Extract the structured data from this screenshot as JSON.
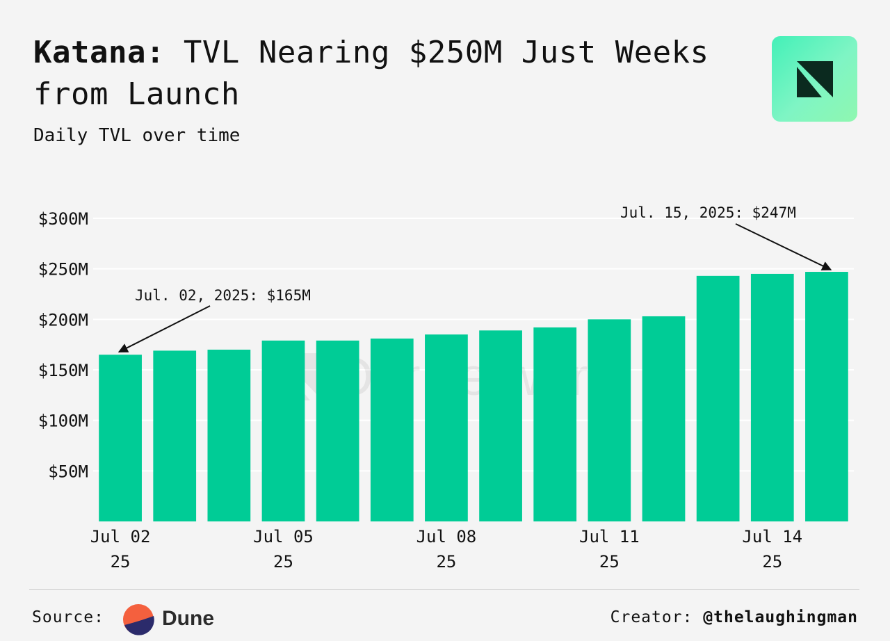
{
  "header": {
    "title_brand": "Katana:",
    "title_rest": " TVL Nearing $250M Just Weeks from Launch",
    "subtitle": "Daily TVL over time"
  },
  "logo": {
    "icon": "ournetwork-logo-icon",
    "bg_color": "#5af5c0"
  },
  "watermark": {
    "text": "OurNetwork"
  },
  "chart_data": {
    "type": "bar",
    "title": "Katana: TVL Nearing $250M Just Weeks from Launch",
    "subtitle": "Daily TVL over time",
    "xlabel": "",
    "ylabel": "",
    "bar_color": "#00cc96",
    "ylim": [
      0,
      300
    ],
    "y_ticks": [
      50,
      100,
      150,
      200,
      250,
      300
    ],
    "y_tick_labels": [
      "$50M",
      "$100M",
      "$150M",
      "$200M",
      "$250M",
      "$300M"
    ],
    "grid": true,
    "categories": [
      "Jul 02",
      "Jul 03",
      "Jul 04",
      "Jul 05",
      "Jul 06",
      "Jul 07",
      "Jul 08",
      "Jul 09",
      "Jul 10",
      "Jul 11",
      "Jul 12",
      "Jul 13",
      "Jul 14",
      "Jul 15"
    ],
    "values": [
      165,
      169,
      170,
      179,
      179,
      181,
      185,
      189,
      192,
      200,
      203,
      243,
      245,
      247
    ],
    "x_ticks": [
      {
        "index": 0,
        "line1": "Jul 02",
        "line2": "25"
      },
      {
        "index": 3,
        "line1": "Jul 05",
        "line2": "25"
      },
      {
        "index": 6,
        "line1": "Jul 08",
        "line2": "25"
      },
      {
        "index": 9,
        "line1": "Jul 11",
        "line2": "25"
      },
      {
        "index": 12,
        "line1": "Jul 14",
        "line2": "25"
      }
    ],
    "annotations": [
      {
        "index": 0,
        "text": "Jul. 02, 2025: $165M"
      },
      {
        "index": 13,
        "text": "Jul. 15, 2025: $247M"
      }
    ]
  },
  "footer": {
    "source_label": "Source:",
    "source_name": "Dune",
    "creator_label": "Creator:",
    "creator_handle": "@thelaughingman",
    "dune_colors": {
      "top": "#f4603e",
      "bottom": "#2b2b6b"
    }
  }
}
